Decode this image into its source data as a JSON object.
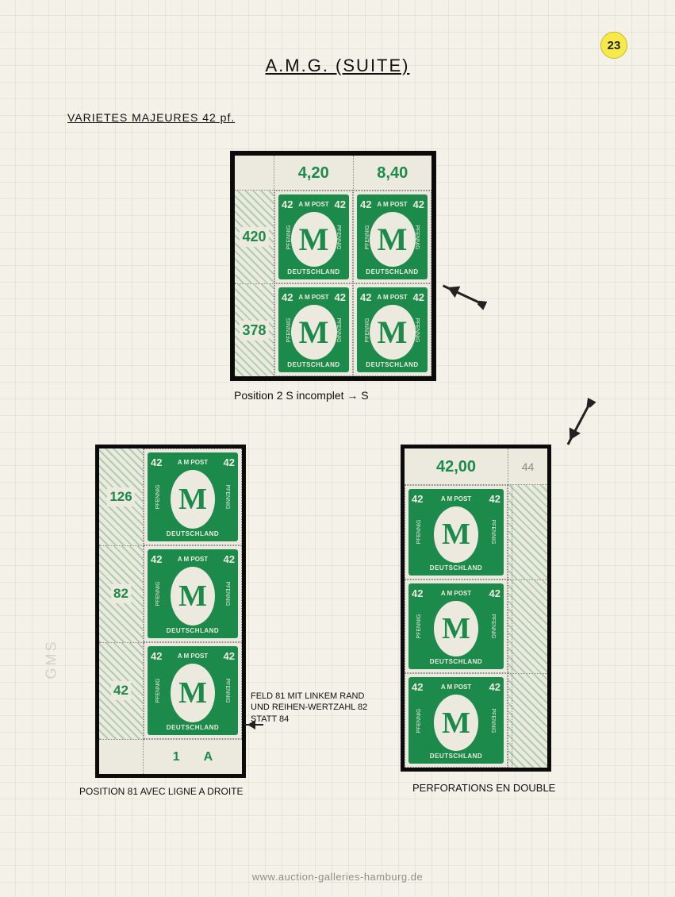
{
  "page_number": "23",
  "title": "A.M.G. (SUITE)",
  "section_heading": "VARIETES MAJEURES 42 pf.",
  "stamp_design": {
    "denomination": "42",
    "top_text": "A M POST",
    "side_text": "PFENNIG",
    "bottom_text": "DEUTSCHLAND",
    "center_letter": "M",
    "ink_color": "#1c8a4a",
    "paper_color": "#eceade"
  },
  "block1": {
    "description": "Upper-left corner block of 4 with top and left selvage",
    "top_selvage_values": [
      "4,20",
      "8,40"
    ],
    "left_selvage_values": [
      "420",
      "378"
    ],
    "arrow_target": "upper-right stamp, letter S in DEUTSCHLAND",
    "caption": "Position 2  S incomplet → S"
  },
  "block2": {
    "description": "Lower-left corner vertical strip of 3 with left and bottom selvage",
    "left_selvage_values": [
      "126",
      "82",
      "42"
    ],
    "plate_numbers": [
      "1",
      "A"
    ],
    "side_note": "FELD 81 MIT LINKEM RAND UND REIHEN-WERTZAHL 82 STATT 84",
    "caption": "POSITION 81 AVEC LIGNE A DROITE"
  },
  "block3": {
    "description": "Upper-right corner vertical strip of 3 with top and right selvage",
    "top_selvage_value": "42,00",
    "corner_pencil": "44",
    "caption": "PERFORATIONS EN DOUBLE",
    "arrow_target": "top-right corner selvage double perforation"
  },
  "colors": {
    "page_background": "#f4f2e8",
    "mount_black": "#0a0a0a",
    "ink_handwriting": "#101010",
    "selvage_number_color": "#1c8a4a",
    "badge_yellow": "#f7e94a",
    "grid_line": "rgba(180,170,150,0.18)"
  },
  "watermark": "www.auction-galleries-hamburg.de",
  "paper_mark": "GMS"
}
